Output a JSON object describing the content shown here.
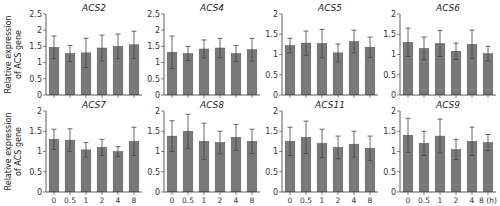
{
  "chart_data": [
    {
      "type": "bar",
      "title": "ACS2",
      "ylabel": "Relative expression\nof ACS gene",
      "categories": [
        null,
        null,
        null,
        null,
        null,
        null
      ],
      "values": [
        1.47,
        1.28,
        1.3,
        1.45,
        1.5,
        1.55
      ],
      "errors": [
        0.35,
        0.25,
        0.45,
        0.4,
        0.38,
        0.42
      ],
      "color": "#797979",
      "ylim": [
        0,
        2.5
      ],
      "yticks": [
        0,
        0.5,
        1,
        1.5,
        2,
        2.5
      ],
      "grid": false
    },
    {
      "type": "bar",
      "title": "ACS4",
      "categories": [
        null,
        null,
        null,
        null,
        null,
        null
      ],
      "values": [
        1.32,
        1.28,
        1.42,
        1.45,
        1.28,
        1.4
      ],
      "errors": [
        0.5,
        0.22,
        0.28,
        0.3,
        0.25,
        0.35
      ],
      "color": "#797979",
      "ylim": [
        0,
        2.5
      ],
      "yticks": [
        0,
        0.5,
        1,
        1.5,
        2,
        2.5
      ],
      "grid": false
    },
    {
      "type": "bar",
      "title": "ACS5",
      "categories": [
        null,
        null,
        null,
        null,
        null,
        null
      ],
      "values": [
        1.22,
        1.28,
        1.27,
        1.04,
        1.32,
        1.18
      ],
      "errors": [
        0.18,
        0.3,
        0.35,
        0.22,
        0.28,
        0.25
      ],
      "color": "#797979",
      "ylim": [
        0,
        2
      ],
      "yticks": [
        0,
        0.5,
        1,
        1.5,
        2
      ],
      "grid": false
    },
    {
      "type": "bar",
      "title": "ACS6",
      "categories": [
        null,
        null,
        null,
        null,
        null,
        null
      ],
      "values": [
        1.3,
        1.15,
        1.27,
        1.08,
        1.25,
        1.02
      ],
      "errors": [
        0.35,
        0.28,
        0.32,
        0.2,
        0.35,
        0.18
      ],
      "color": "#797979",
      "ylim": [
        0,
        2
      ],
      "yticks": [
        0,
        0.5,
        1,
        1.5,
        2
      ],
      "grid": false
    },
    {
      "type": "bar",
      "title": "ACS7",
      "ylabel": "Relative expression\nof ACS gene",
      "categories": [
        "0",
        "0.5",
        "1",
        "2",
        "4",
        "8"
      ],
      "values": [
        1.3,
        1.28,
        1.04,
        1.1,
        1.0,
        1.25
      ],
      "errors": [
        0.25,
        0.28,
        0.18,
        0.2,
        0.12,
        0.35
      ],
      "color": "#797979",
      "ylim": [
        0,
        2
      ],
      "yticks": [
        0,
        0.5,
        1,
        1.5,
        2
      ],
      "grid": false
    },
    {
      "type": "bar",
      "title": "ACS8",
      "categories": [
        "0",
        "0.5",
        "1",
        "2",
        "4",
        "8"
      ],
      "values": [
        1.38,
        1.5,
        1.25,
        1.22,
        1.35,
        1.25
      ],
      "errors": [
        0.38,
        0.42,
        0.45,
        0.28,
        0.32,
        0.3
      ],
      "color": "#797979",
      "ylim": [
        0,
        2
      ],
      "yticks": [
        0,
        0.5,
        1,
        1.5,
        2
      ],
      "grid": false
    },
    {
      "type": "bar",
      "title": "ACS11",
      "categories": [
        "0",
        "0.5",
        "1",
        "2",
        "4",
        "8"
      ],
      "values": [
        1.25,
        1.35,
        1.2,
        1.1,
        1.18,
        1.08
      ],
      "errors": [
        0.35,
        0.4,
        0.35,
        0.28,
        0.32,
        0.3
      ],
      "color": "#797979",
      "ylim": [
        0,
        2
      ],
      "yticks": [
        0,
        0.5,
        1,
        1.5,
        2
      ],
      "grid": false
    },
    {
      "type": "bar",
      "title": "ACS9",
      "categories": [
        "0",
        "0.5",
        "1",
        "2",
        "4",
        "8 (h)"
      ],
      "values": [
        1.4,
        1.2,
        1.38,
        1.05,
        1.25,
        1.22
      ],
      "errors": [
        0.42,
        0.3,
        0.42,
        0.25,
        0.35,
        0.2
      ],
      "color": "#797979",
      "ylim": [
        0,
        2
      ],
      "yticks": [
        0,
        0.5,
        1,
        1.5,
        2
      ],
      "grid": false
    }
  ]
}
